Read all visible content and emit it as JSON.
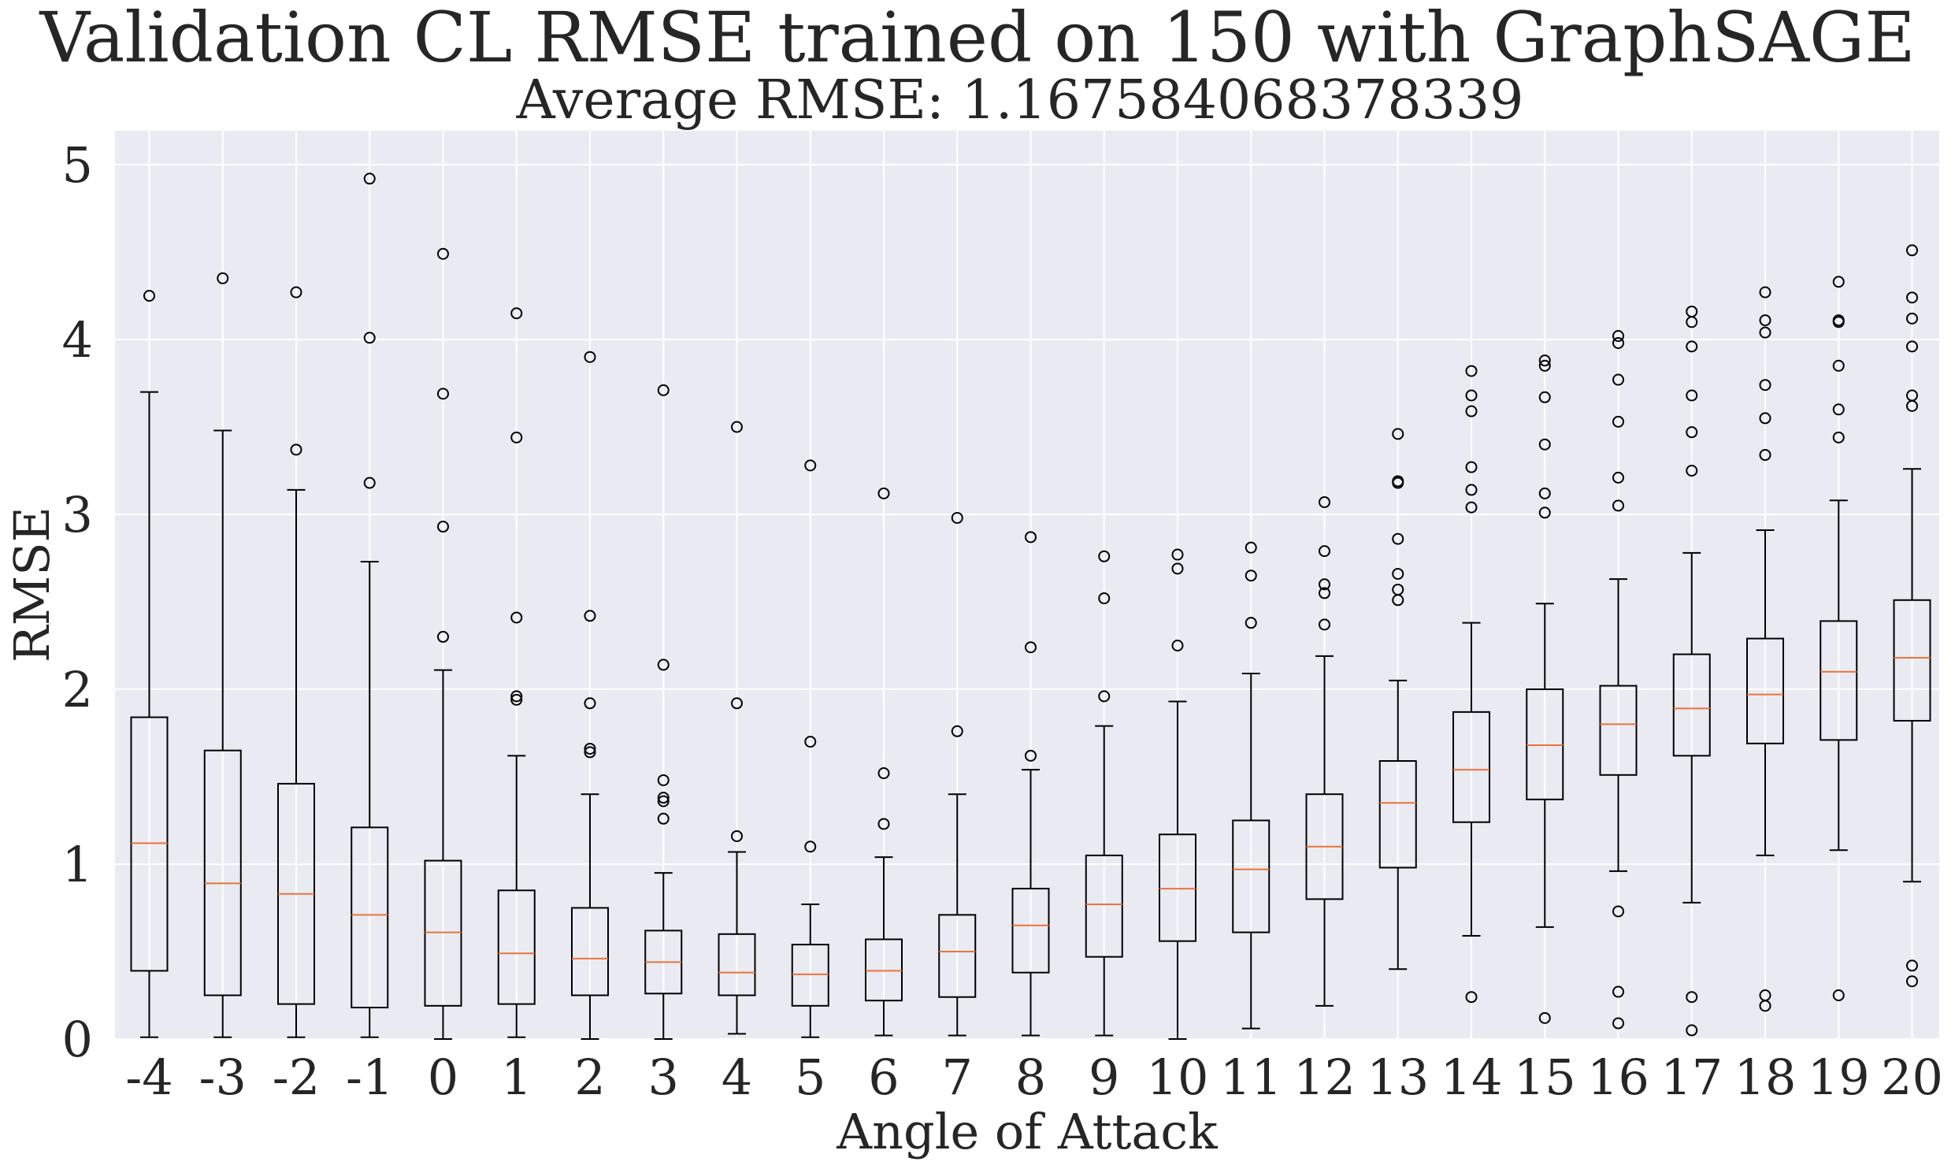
{
  "chart_data": {
    "type": "box",
    "title": "Validation CL RMSE trained on 150 with GraphSAGE",
    "subtitle": "Average RMSE:  1.167584068378339",
    "xlabel": "Angle of Attack",
    "ylabel": "RMSE",
    "ylim": [
      0,
      5.2
    ],
    "yticks": [
      "0",
      "1",
      "2",
      "3",
      "4",
      "5"
    ],
    "grid": true,
    "categories": [
      "-4",
      "-3",
      "-2",
      "-1",
      "0",
      "1",
      "2",
      "3",
      "4",
      "5",
      "6",
      "7",
      "8",
      "9",
      "10",
      "11",
      "12",
      "13",
      "14",
      "15",
      "16",
      "17",
      "18",
      "19",
      "20"
    ],
    "boxes": [
      {
        "label": "-4",
        "whislo": 0.01,
        "q1": 0.39,
        "med": 1.12,
        "q3": 1.84,
        "whishi": 3.7,
        "fliers": [
          4.25
        ]
      },
      {
        "label": "-3",
        "whislo": 0.01,
        "q1": 0.25,
        "med": 0.89,
        "q3": 1.65,
        "whishi": 3.48,
        "fliers": [
          4.35
        ]
      },
      {
        "label": "-2",
        "whislo": 0.01,
        "q1": 0.2,
        "med": 0.83,
        "q3": 1.46,
        "whishi": 3.14,
        "fliers": [
          3.37,
          4.27
        ]
      },
      {
        "label": "-1",
        "whislo": 0.01,
        "q1": 0.18,
        "med": 0.71,
        "q3": 1.21,
        "whishi": 2.73,
        "fliers": [
          3.18,
          4.01,
          4.92
        ]
      },
      {
        "label": "0",
        "whislo": 0.0,
        "q1": 0.19,
        "med": 0.61,
        "q3": 1.02,
        "whishi": 2.11,
        "fliers": [
          2.3,
          2.93,
          3.69,
          4.49
        ]
      },
      {
        "label": "1",
        "whislo": 0.01,
        "q1": 0.2,
        "med": 0.49,
        "q3": 0.85,
        "whishi": 1.62,
        "fliers": [
          1.94,
          1.96,
          2.41,
          3.44,
          4.15
        ]
      },
      {
        "label": "2",
        "whislo": 0.0,
        "q1": 0.25,
        "med": 0.46,
        "q3": 0.75,
        "whishi": 1.4,
        "fliers": [
          1.64,
          1.66,
          1.92,
          2.42,
          3.9
        ]
      },
      {
        "label": "3",
        "whislo": 0.0,
        "q1": 0.26,
        "med": 0.44,
        "q3": 0.62,
        "whishi": 0.95,
        "fliers": [
          1.26,
          1.36,
          1.38,
          1.48,
          2.14,
          3.71
        ]
      },
      {
        "label": "4",
        "whislo": 0.03,
        "q1": 0.25,
        "med": 0.38,
        "q3": 0.6,
        "whishi": 1.07,
        "fliers": [
          1.16,
          1.92,
          3.5
        ]
      },
      {
        "label": "5",
        "whislo": 0.01,
        "q1": 0.19,
        "med": 0.37,
        "q3": 0.54,
        "whishi": 0.77,
        "fliers": [
          1.1,
          1.7,
          3.28
        ]
      },
      {
        "label": "6",
        "whislo": 0.02,
        "q1": 0.22,
        "med": 0.39,
        "q3": 0.57,
        "whishi": 1.04,
        "fliers": [
          1.23,
          1.52,
          3.12
        ]
      },
      {
        "label": "7",
        "whislo": 0.02,
        "q1": 0.24,
        "med": 0.5,
        "q3": 0.71,
        "whishi": 1.4,
        "fliers": [
          1.76,
          2.98
        ]
      },
      {
        "label": "8",
        "whislo": 0.02,
        "q1": 0.38,
        "med": 0.65,
        "q3": 0.86,
        "whishi": 1.54,
        "fliers": [
          1.62,
          2.24,
          2.87
        ]
      },
      {
        "label": "9",
        "whislo": 0.02,
        "q1": 0.47,
        "med": 0.77,
        "q3": 1.05,
        "whishi": 1.79,
        "fliers": [
          1.96,
          2.52,
          2.76
        ]
      },
      {
        "label": "10",
        "whislo": 0.0,
        "q1": 0.56,
        "med": 0.86,
        "q3": 1.17,
        "whishi": 1.93,
        "fliers": [
          2.25,
          2.69,
          2.77
        ]
      },
      {
        "label": "11",
        "whislo": 0.06,
        "q1": 0.61,
        "med": 0.97,
        "q3": 1.25,
        "whishi": 2.09,
        "fliers": [
          2.38,
          2.65,
          2.81
        ]
      },
      {
        "label": "12",
        "whislo": 0.19,
        "q1": 0.8,
        "med": 1.1,
        "q3": 1.4,
        "whishi": 2.19,
        "fliers": [
          2.37,
          2.55,
          2.6,
          2.79,
          3.07
        ]
      },
      {
        "label": "13",
        "whislo": 0.4,
        "q1": 0.98,
        "med": 1.35,
        "q3": 1.59,
        "whishi": 2.05,
        "fliers": [
          2.51,
          2.57,
          2.66,
          2.86,
          3.18,
          3.19,
          3.46
        ]
      },
      {
        "label": "14",
        "whislo": 0.59,
        "q1": 1.24,
        "med": 1.54,
        "q3": 1.87,
        "whishi": 2.38,
        "fliers": [
          0.24,
          3.04,
          3.14,
          3.27,
          3.59,
          3.68,
          3.82
        ]
      },
      {
        "label": "15",
        "whislo": 0.64,
        "q1": 1.37,
        "med": 1.68,
        "q3": 2.0,
        "whishi": 2.49,
        "fliers": [
          0.12,
          3.01,
          3.12,
          3.4,
          3.67,
          3.85,
          3.88
        ]
      },
      {
        "label": "16",
        "whislo": 0.96,
        "q1": 1.51,
        "med": 1.8,
        "q3": 2.02,
        "whishi": 2.63,
        "fliers": [
          0.09,
          0.27,
          0.73,
          3.05,
          3.21,
          3.53,
          3.77,
          3.98,
          4.02
        ]
      },
      {
        "label": "17",
        "whislo": 0.78,
        "q1": 1.62,
        "med": 1.89,
        "q3": 2.2,
        "whishi": 2.78,
        "fliers": [
          0.05,
          0.24,
          3.25,
          3.47,
          3.68,
          3.96,
          4.1,
          4.16
        ]
      },
      {
        "label": "18",
        "whislo": 1.05,
        "q1": 1.69,
        "med": 1.97,
        "q3": 2.29,
        "whishi": 2.91,
        "fliers": [
          0.19,
          0.25,
          3.34,
          3.55,
          3.74,
          4.04,
          4.11,
          4.27
        ]
      },
      {
        "label": "19",
        "whislo": 1.08,
        "q1": 1.71,
        "med": 2.1,
        "q3": 2.39,
        "whishi": 3.08,
        "fliers": [
          0.25,
          3.44,
          3.6,
          3.85,
          4.1,
          4.11,
          4.33
        ]
      },
      {
        "label": "20",
        "whislo": 0.9,
        "q1": 1.82,
        "med": 2.18,
        "q3": 2.51,
        "whishi": 3.26,
        "fliers": [
          0.33,
          0.42,
          3.62,
          3.68,
          3.96,
          4.12,
          4.24,
          4.51
        ]
      }
    ],
    "colors": {
      "background": "#eaeaf2",
      "grid": "#ffffff",
      "box": "#000000",
      "median": "#e8743b"
    }
  }
}
